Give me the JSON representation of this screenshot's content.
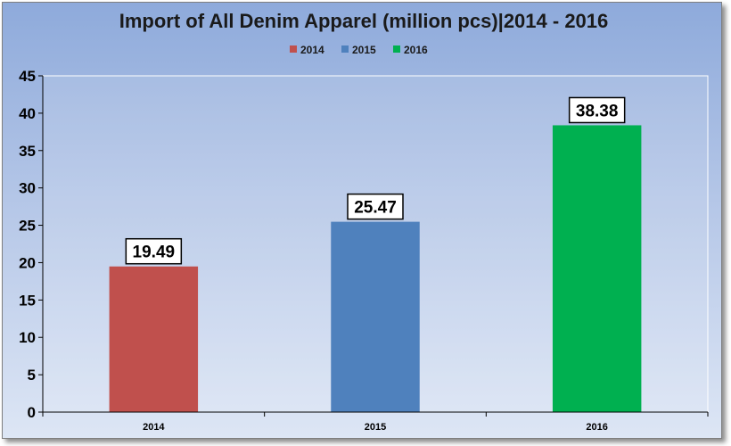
{
  "chart_data": {
    "type": "bar",
    "title": "Import of All Denim Apparel (million pcs)|2014 - 2016",
    "categories": [
      "2014",
      "2015",
      "2016"
    ],
    "values": [
      19.49,
      25.47,
      38.38
    ],
    "data_labels": [
      "19.49",
      "25.47",
      "38.38"
    ],
    "colors": [
      "#c0504d",
      "#4f81bd",
      "#00b050"
    ],
    "legend": {
      "placement": "top",
      "entries": [
        "2014",
        "2015",
        "2016"
      ]
    },
    "xlabel": "",
    "ylabel": "",
    "ylim": [
      0,
      45
    ],
    "yticks": [
      0,
      5,
      10,
      15,
      20,
      25,
      30,
      35,
      40,
      45
    ],
    "grid": false
  }
}
